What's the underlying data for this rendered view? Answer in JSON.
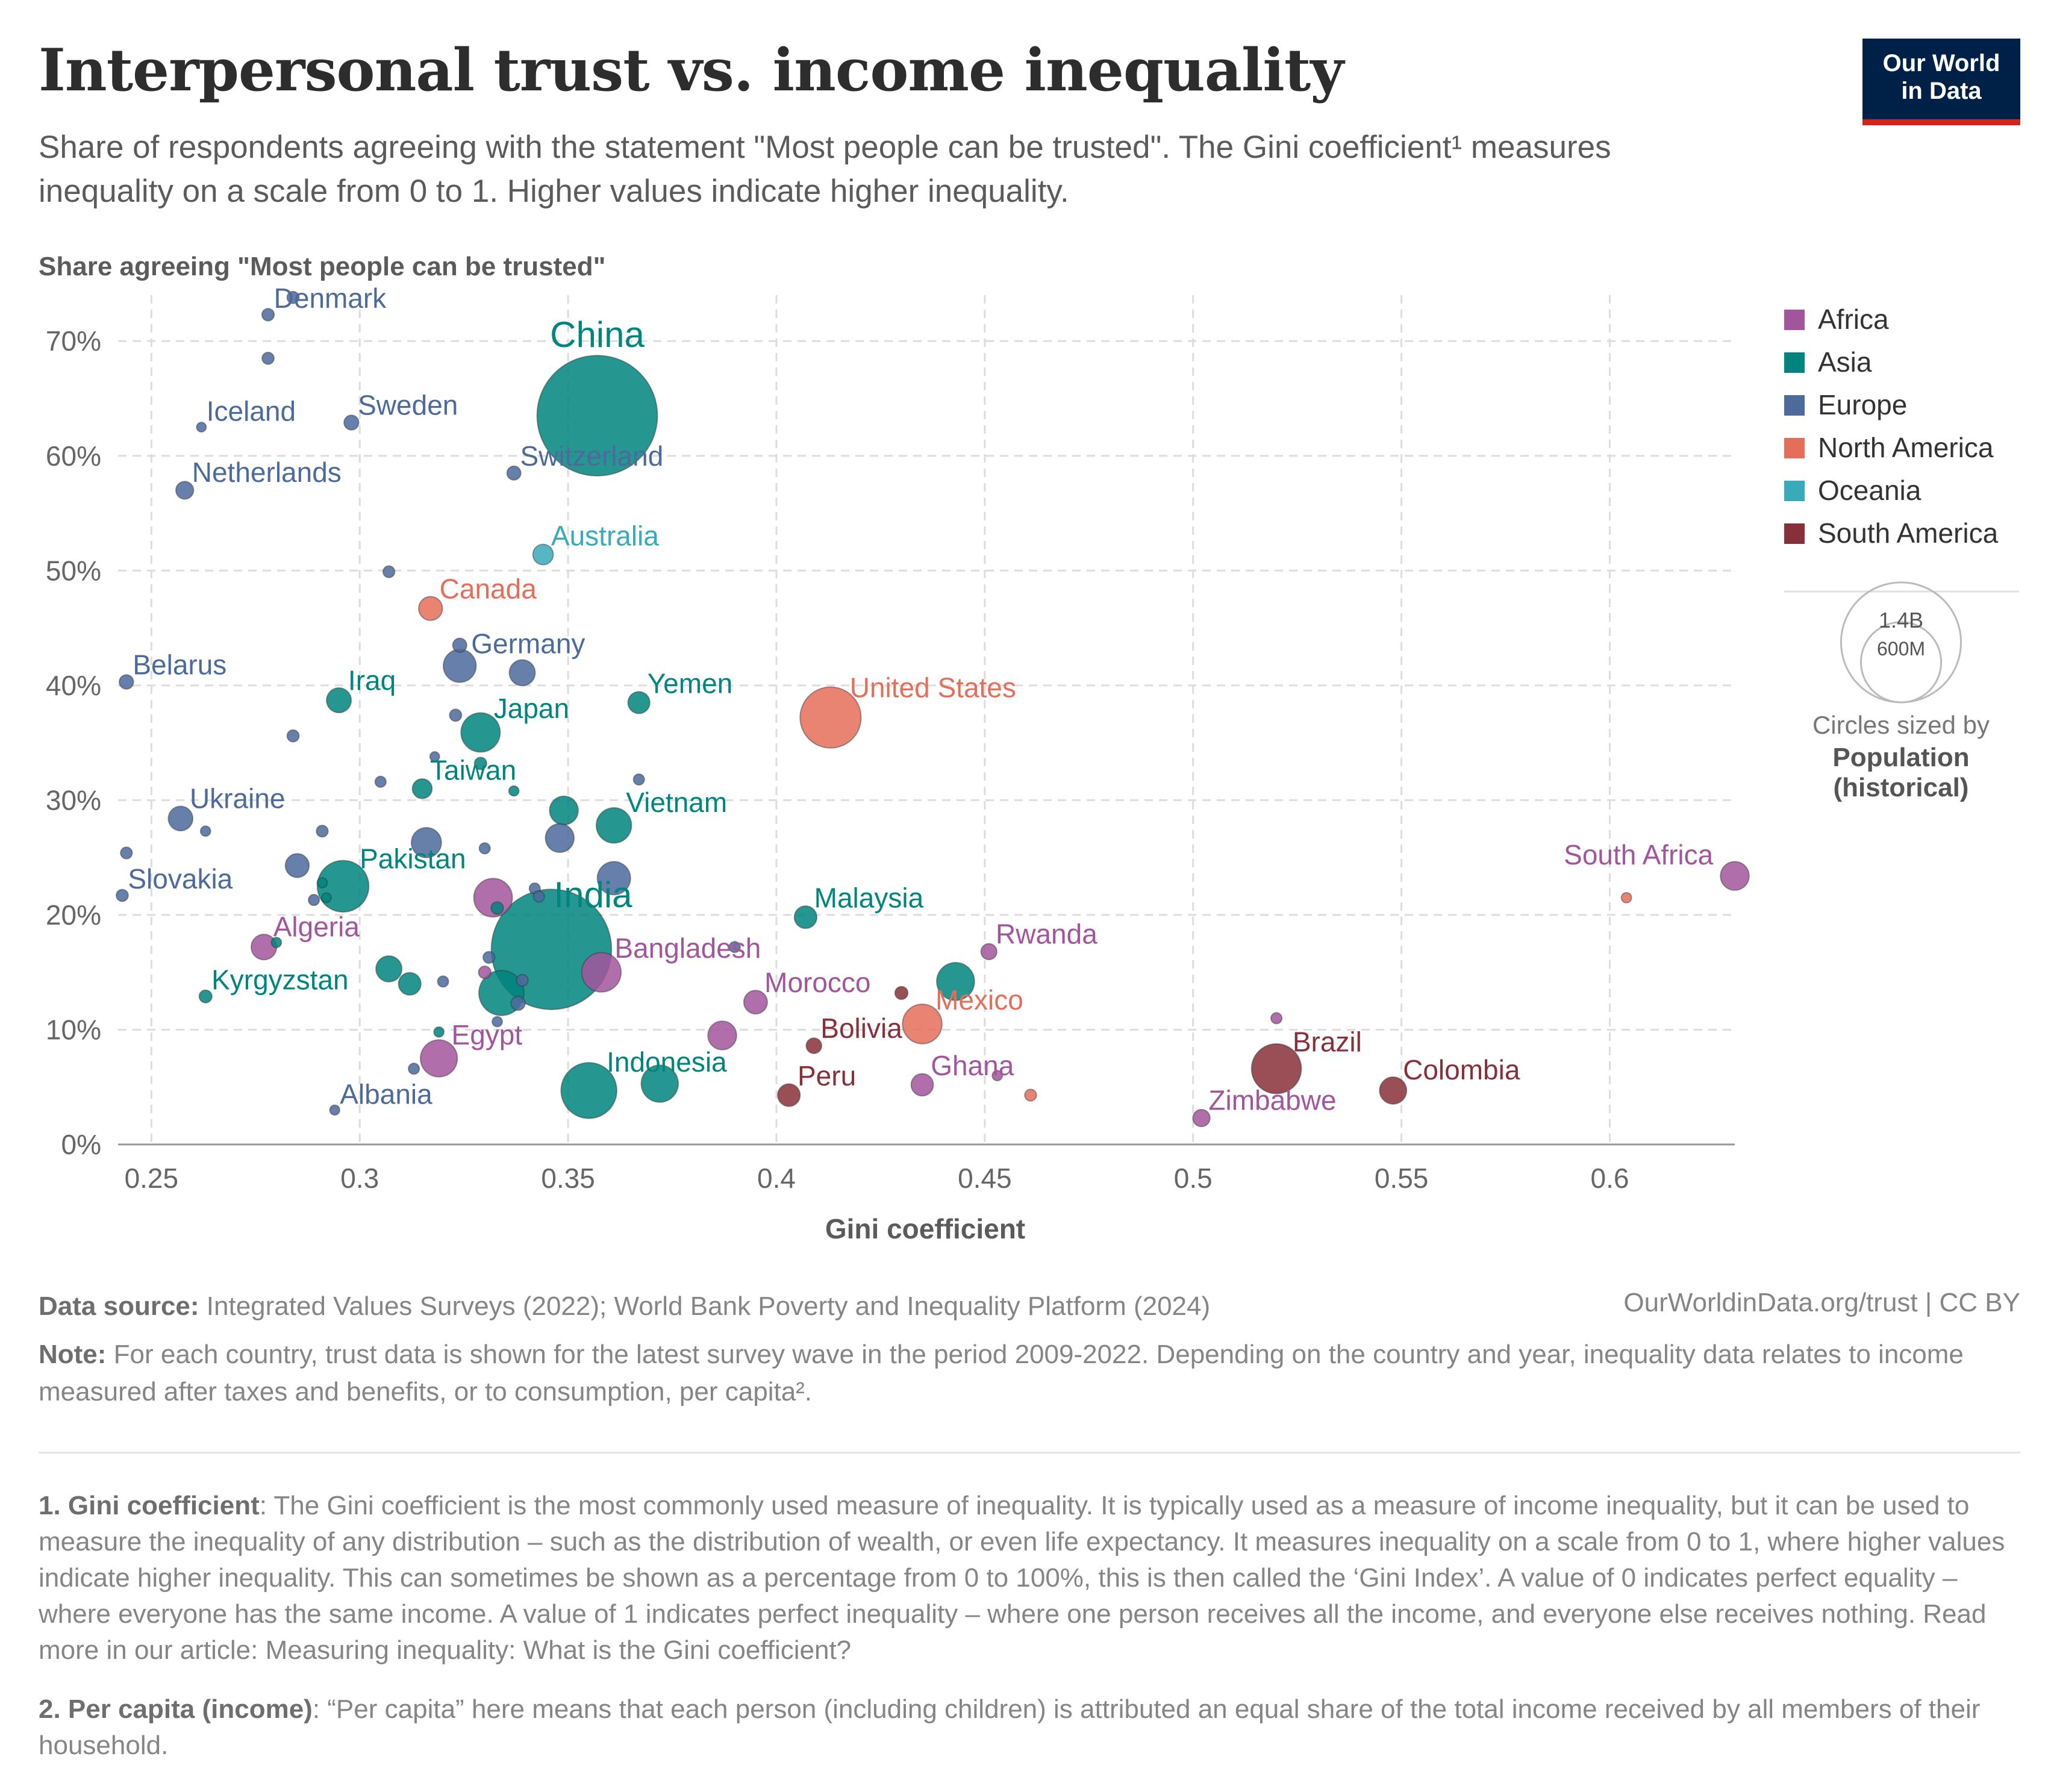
{
  "header": {
    "title": "Interpersonal trust vs. income inequality",
    "subtitle": "Share of respondents agreeing with the statement \"Most people can be trusted\". The Gini coefficient¹ measures inequality on a scale from 0 to 1. Higher values indicate higher inequality.",
    "logo_line1": "Our World",
    "logo_line2": "in Data"
  },
  "footer": {
    "source_label": "Data source:",
    "source_text": "Integrated Values Surveys (2022); World Bank Poverty and Inequality Platform (2024)",
    "url_text": "OurWorldinData.org/trust | CC BY",
    "note_label": "Note:",
    "note_text": "For each country, trust data is shown for the latest survey wave in the period 2009-2022. Depending on the country and year, inequality data relates to income measured after taxes and benefits, or to consumption, per capita².",
    "fn1_label": "1. Gini coefficient",
    "fn1_text": ": The Gini coefficient is the most commonly used measure of inequality. It is typically used as a measure of income inequality, but it can be used to measure the inequality of any distribution – such as the distribution of wealth, or even life expectancy. It measures inequality on a scale from 0 to 1, where higher values indicate higher inequality. This can sometimes be shown as a percentage from 0 to 100%, this is then called the ‘Gini Index’. A value of 0 indicates perfect equality – where everyone has the same income. A value of 1 indicates perfect inequality – where one person receives all the income, and everyone else receives nothing. Read more in our article: Measuring inequality: What is the Gini coefficient?",
    "fn2_label": "2. Per capita (income)",
    "fn2_text": ": “Per capita” here means that each person (including children) is attributed an equal share of the total income received by all members of their household."
  },
  "chart_data": {
    "type": "scatter",
    "title": "Interpersonal trust vs. income inequality",
    "xlabel": "Gini coefficient",
    "ylabel": "Share agreeing \"Most people can be trusted\"",
    "xlim": [
      0.242,
      0.63
    ],
    "ylim": [
      0,
      74
    ],
    "x_ticks": [
      0.25,
      0.3,
      0.35,
      0.4,
      0.45,
      0.5,
      0.55,
      0.6
    ],
    "x_tick_labels": [
      "0.25",
      "0.3",
      "0.35",
      "0.4",
      "0.45",
      "0.5",
      "0.55",
      "0.6"
    ],
    "y_ticks": [
      0,
      10,
      20,
      30,
      40,
      50,
      60,
      70
    ],
    "y_tick_labels": [
      "0%",
      "10%",
      "20%",
      "30%",
      "40%",
      "50%",
      "60%",
      "70%"
    ],
    "grid": true,
    "legend_position": "right",
    "size_by": "population",
    "size_legend": {
      "large": "1.4B",
      "small": "600M",
      "caption_line1": "Circles sized by",
      "caption_line2": "Population",
      "caption_line3": "(historical)"
    },
    "regions": [
      {
        "name": "Africa",
        "color": "#a2559c"
      },
      {
        "name": "Asia",
        "color": "#00847e"
      },
      {
        "name": "Europe",
        "color": "#4c6a9c"
      },
      {
        "name": "North America",
        "color": "#e56e5a"
      },
      {
        "name": "Oceania",
        "color": "#38aaba"
      },
      {
        "name": "South America",
        "color": "#883039"
      }
    ],
    "points": [
      {
        "label": "Denmark",
        "x": 0.278,
        "y": 72.3,
        "region": "Europe",
        "pop": 5.9
      },
      {
        "label": "",
        "x": 0.284,
        "y": 73.8,
        "region": "Europe",
        "pop": 5.5
      },
      {
        "label": "",
        "x": 0.278,
        "y": 68.5,
        "region": "Europe",
        "pop": 5.4
      },
      {
        "label": "Iceland",
        "x": 0.262,
        "y": 62.5,
        "region": "Europe",
        "pop": 0.37
      },
      {
        "label": "Sweden",
        "x": 0.298,
        "y": 62.9,
        "region": "Europe",
        "pop": 10.5
      },
      {
        "label": "Netherlands",
        "x": 0.258,
        "y": 57.0,
        "region": "Europe",
        "pop": 17.5
      },
      {
        "label": "China",
        "x": 0.357,
        "y": 63.5,
        "region": "Asia",
        "pop": 1412
      },
      {
        "label": "Switzerland",
        "x": 0.337,
        "y": 58.5,
        "region": "Europe",
        "pop": 8.7
      },
      {
        "label": "Australia",
        "x": 0.344,
        "y": 51.4,
        "region": "Oceania",
        "pop": 25.7
      },
      {
        "label": "",
        "x": 0.307,
        "y": 49.9,
        "region": "Europe",
        "pop": 5.0
      },
      {
        "label": "Canada",
        "x": 0.317,
        "y": 46.7,
        "region": "North America",
        "pop": 38
      },
      {
        "label": "Germany",
        "x": 0.324,
        "y": 41.7,
        "region": "Europe",
        "pop": 83
      },
      {
        "label": "",
        "x": 0.324,
        "y": 43.5,
        "region": "Europe",
        "pop": 9
      },
      {
        "label": "",
        "x": 0.339,
        "y": 41.1,
        "region": "Europe",
        "pop": 47
      },
      {
        "label": "Belarus",
        "x": 0.244,
        "y": 40.3,
        "region": "Europe",
        "pop": 9.4
      },
      {
        "label": "Iraq",
        "x": 0.295,
        "y": 38.7,
        "region": "Asia",
        "pop": 42
      },
      {
        "label": "Yemen",
        "x": 0.367,
        "y": 38.5,
        "region": "Asia",
        "pop": 31
      },
      {
        "label": "Japan",
        "x": 0.329,
        "y": 35.9,
        "region": "Asia",
        "pop": 125
      },
      {
        "label": "",
        "x": 0.323,
        "y": 37.4,
        "region": "Europe",
        "pop": 5.5
      },
      {
        "label": "United States",
        "x": 0.413,
        "y": 37.2,
        "region": "North America",
        "pop": 333
      },
      {
        "label": "",
        "x": 0.284,
        "y": 35.6,
        "region": "Europe",
        "pop": 5.4
      },
      {
        "label": "Taiwan",
        "x": 0.315,
        "y": 31.0,
        "region": "Asia",
        "pop": 23.5
      },
      {
        "label": "",
        "x": 0.318,
        "y": 33.8,
        "region": "Europe",
        "pop": 2.1
      },
      {
        "label": "",
        "x": 0.329,
        "y": 33.2,
        "region": "Asia",
        "pop": 5.9
      },
      {
        "label": "",
        "x": 0.305,
        "y": 31.6,
        "region": "Europe",
        "pop": 4
      },
      {
        "label": "",
        "x": 0.337,
        "y": 30.8,
        "region": "Asia",
        "pop": 3
      },
      {
        "label": "",
        "x": 0.367,
        "y": 31.8,
        "region": "Europe",
        "pop": 4
      },
      {
        "label": "Ukraine",
        "x": 0.257,
        "y": 28.4,
        "region": "Europe",
        "pop": 41
      },
      {
        "label": "",
        "x": 0.263,
        "y": 27.3,
        "region": "Europe",
        "pop": 3
      },
      {
        "label": "",
        "x": 0.291,
        "y": 27.3,
        "region": "Europe",
        "pop": 5
      },
      {
        "label": "Vietnam",
        "x": 0.361,
        "y": 27.8,
        "region": "Asia",
        "pop": 98
      },
      {
        "label": "",
        "x": 0.349,
        "y": 29.1,
        "region": "Asia",
        "pop": 60
      },
      {
        "label": "",
        "x": 0.348,
        "y": 26.7,
        "region": "Europe",
        "pop": 60
      },
      {
        "label": "",
        "x": 0.316,
        "y": 26.3,
        "region": "Europe",
        "pop": 67
      },
      {
        "label": "",
        "x": 0.33,
        "y": 25.8,
        "region": "Europe",
        "pop": 4
      },
      {
        "label": "Slovakia",
        "x": 0.243,
        "y": 21.7,
        "region": "Europe",
        "pop": 5.4
      },
      {
        "label": "",
        "x": 0.244,
        "y": 25.4,
        "region": "Europe",
        "pop": 5
      },
      {
        "label": "Pakistan",
        "x": 0.296,
        "y": 22.5,
        "region": "Asia",
        "pop": 231
      },
      {
        "label": "",
        "x": 0.285,
        "y": 24.3,
        "region": "Europe",
        "pop": 38
      },
      {
        "label": "",
        "x": 0.289,
        "y": 21.3,
        "region": "Europe",
        "pop": 4
      },
      {
        "label": "",
        "x": 0.291,
        "y": 22.8,
        "region": "Asia",
        "pop": 3
      },
      {
        "label": "",
        "x": 0.292,
        "y": 21.5,
        "region": "Asia",
        "pop": 2
      },
      {
        "label": "",
        "x": 0.361,
        "y": 23.2,
        "region": "Europe",
        "pop": 85
      },
      {
        "label": "",
        "x": 0.332,
        "y": 21.5,
        "region": "Africa",
        "pop": 120
      },
      {
        "label": "",
        "x": 0.342,
        "y": 22.3,
        "region": "Europe",
        "pop": 4
      },
      {
        "label": "",
        "x": 0.343,
        "y": 21.6,
        "region": "Europe",
        "pop": 4
      },
      {
        "label": "",
        "x": 0.333,
        "y": 20.6,
        "region": "Asia",
        "pop": 6
      },
      {
        "label": "India",
        "x": 0.346,
        "y": 17.0,
        "region": "Asia",
        "pop": 1408
      },
      {
        "label": "Malaysia",
        "x": 0.407,
        "y": 19.8,
        "region": "Asia",
        "pop": 33
      },
      {
        "label": "Algeria",
        "x": 0.277,
        "y": 17.2,
        "region": "Africa",
        "pop": 45
      },
      {
        "label": "",
        "x": 0.28,
        "y": 17.6,
        "region": "Asia",
        "pop": 3
      },
      {
        "label": "",
        "x": 0.39,
        "y": 17.2,
        "region": "Europe",
        "pop": 4
      },
      {
        "label": "Rwanda",
        "x": 0.451,
        "y": 16.8,
        "region": "Africa",
        "pop": 13
      },
      {
        "label": "Bangladesh",
        "x": 0.358,
        "y": 15.0,
        "region": "Africa",
        "pop": 126
      },
      {
        "label": "",
        "x": 0.307,
        "y": 15.3,
        "region": "Asia",
        "pop": 47
      },
      {
        "label": "",
        "x": 0.312,
        "y": 14.0,
        "region": "Asia",
        "pop": 33
      },
      {
        "label": "",
        "x": 0.33,
        "y": 15.0,
        "region": "Africa",
        "pop": 6
      },
      {
        "label": "",
        "x": 0.331,
        "y": 16.3,
        "region": "Europe",
        "pop": 5
      },
      {
        "label": "",
        "x": 0.32,
        "y": 14.2,
        "region": "Europe",
        "pop": 4
      },
      {
        "label": "",
        "x": 0.339,
        "y": 14.3,
        "region": "Europe",
        "pop": 5
      },
      {
        "label": "Kyrgyzstan",
        "x": 0.263,
        "y": 12.9,
        "region": "Asia",
        "pop": 6.7
      },
      {
        "label": "",
        "x": 0.334,
        "y": 13.2,
        "region": "Asia",
        "pop": 171
      },
      {
        "label": "",
        "x": 0.338,
        "y": 12.3,
        "region": "Europe",
        "pop": 9
      },
      {
        "label": "Morocco",
        "x": 0.395,
        "y": 12.4,
        "region": "Africa",
        "pop": 37
      },
      {
        "label": "",
        "x": 0.443,
        "y": 14.2,
        "region": "Asia",
        "pop": 115
      },
      {
        "label": "",
        "x": 0.43,
        "y": 13.2,
        "region": "South America",
        "pop": 7
      },
      {
        "label": "Mexico",
        "x": 0.435,
        "y": 10.5,
        "region": "North America",
        "pop": 127
      },
      {
        "label": "Bolivia",
        "x": 0.409,
        "y": 8.6,
        "region": "South America",
        "pop": 12
      },
      {
        "label": "Egypt",
        "x": 0.319,
        "y": 7.5,
        "region": "Africa",
        "pop": 109
      },
      {
        "label": "",
        "x": 0.319,
        "y": 9.8,
        "region": "Asia",
        "pop": 3
      },
      {
        "label": "",
        "x": 0.333,
        "y": 10.7,
        "region": "Europe",
        "pop": 3
      },
      {
        "label": "",
        "x": 0.387,
        "y": 9.5,
        "region": "Africa",
        "pop": 60
      },
      {
        "label": "Indonesia",
        "x": 0.355,
        "y": 4.7,
        "region": "Asia",
        "pop": 274
      },
      {
        "label": "",
        "x": 0.372,
        "y": 5.3,
        "region": "Asia",
        "pop": 110
      },
      {
        "label": "",
        "x": 0.313,
        "y": 6.6,
        "region": "Europe",
        "pop": 4
      },
      {
        "label": "Peru",
        "x": 0.403,
        "y": 4.3,
        "region": "South America",
        "pop": 33
      },
      {
        "label": "Ghana",
        "x": 0.435,
        "y": 5.2,
        "region": "Africa",
        "pop": 32
      },
      {
        "label": "",
        "x": 0.461,
        "y": 4.3,
        "region": "North America",
        "pop": 5
      },
      {
        "label": "",
        "x": 0.453,
        "y": 6.0,
        "region": "Africa",
        "pop": 3
      },
      {
        "label": "Albania",
        "x": 0.294,
        "y": 3.0,
        "region": "Europe",
        "pop": 2.8
      },
      {
        "label": "Brazil",
        "x": 0.52,
        "y": 6.6,
        "region": "South America",
        "pop": 214
      },
      {
        "label": "",
        "x": 0.52,
        "y": 11.0,
        "region": "Africa",
        "pop": 4
      },
      {
        "label": "Colombia",
        "x": 0.548,
        "y": 4.7,
        "region": "South America",
        "pop": 52
      },
      {
        "label": "Zimbabwe",
        "x": 0.502,
        "y": 2.3,
        "region": "Africa",
        "pop": 16
      },
      {
        "label": "South Africa",
        "x": 0.63,
        "y": 23.4,
        "region": "Africa",
        "pop": 60
      },
      {
        "label": "",
        "x": 0.604,
        "y": 21.5,
        "region": "North America",
        "pop": 3
      }
    ]
  }
}
